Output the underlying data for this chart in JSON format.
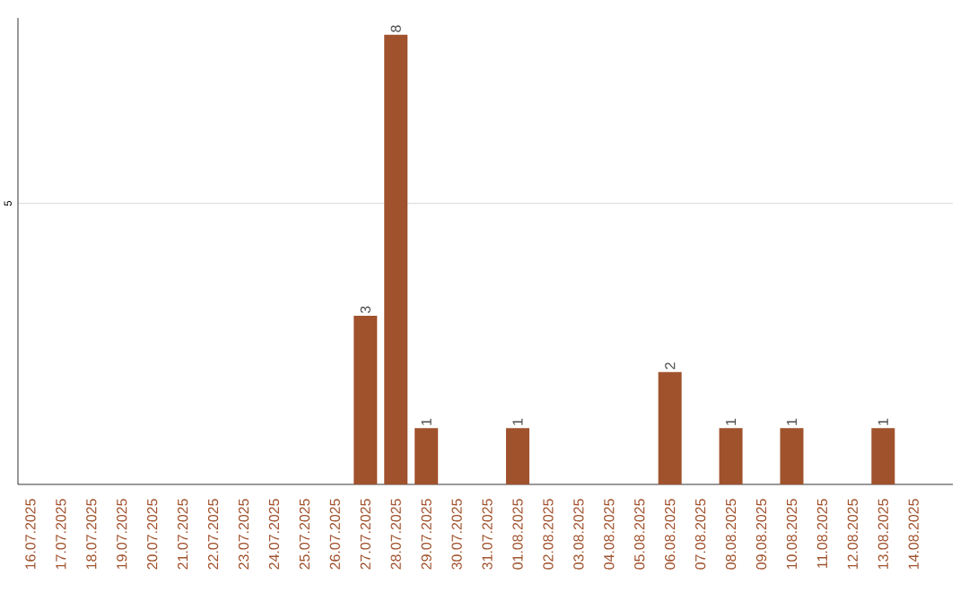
{
  "chart_data": {
    "type": "bar",
    "categories": [
      "16.07.2025",
      "17.07.2025",
      "18.07.2025",
      "19.07.2025",
      "20.07.2025",
      "21.07.2025",
      "22.07.2025",
      "23.07.2025",
      "24.07.2025",
      "25.07.2025",
      "26.07.2025",
      "27.07.2025",
      "28.07.2025",
      "29.07.2025",
      "30.07.2025",
      "31.07.2025",
      "01.08.2025",
      "02.08.2025",
      "03.08.2025",
      "04.08.2025",
      "05.08.2025",
      "06.08.2025",
      "07.08.2025",
      "08.08.2025",
      "09.08.2025",
      "10.08.2025",
      "11.08.2025",
      "12.08.2025",
      "13.08.2025",
      "14.08.2025"
    ],
    "values": [
      0,
      0,
      0,
      0,
      0,
      0,
      0,
      0,
      0,
      0,
      0,
      3,
      8,
      1,
      0,
      0,
      1,
      0,
      0,
      0,
      0,
      2,
      0,
      1,
      0,
      1,
      0,
      0,
      1,
      0
    ],
    "value_labels": [
      null,
      null,
      null,
      null,
      null,
      null,
      null,
      null,
      null,
      null,
      null,
      "3",
      "8",
      "1",
      null,
      null,
      "1",
      null,
      null,
      null,
      null,
      "2",
      null,
      "1",
      null,
      "1",
      null,
      null,
      "1",
      null
    ],
    "color": "#a0522d",
    "ylim": [
      0,
      8.3
    ],
    "yticks": [
      5
    ],
    "grid": "y"
  }
}
